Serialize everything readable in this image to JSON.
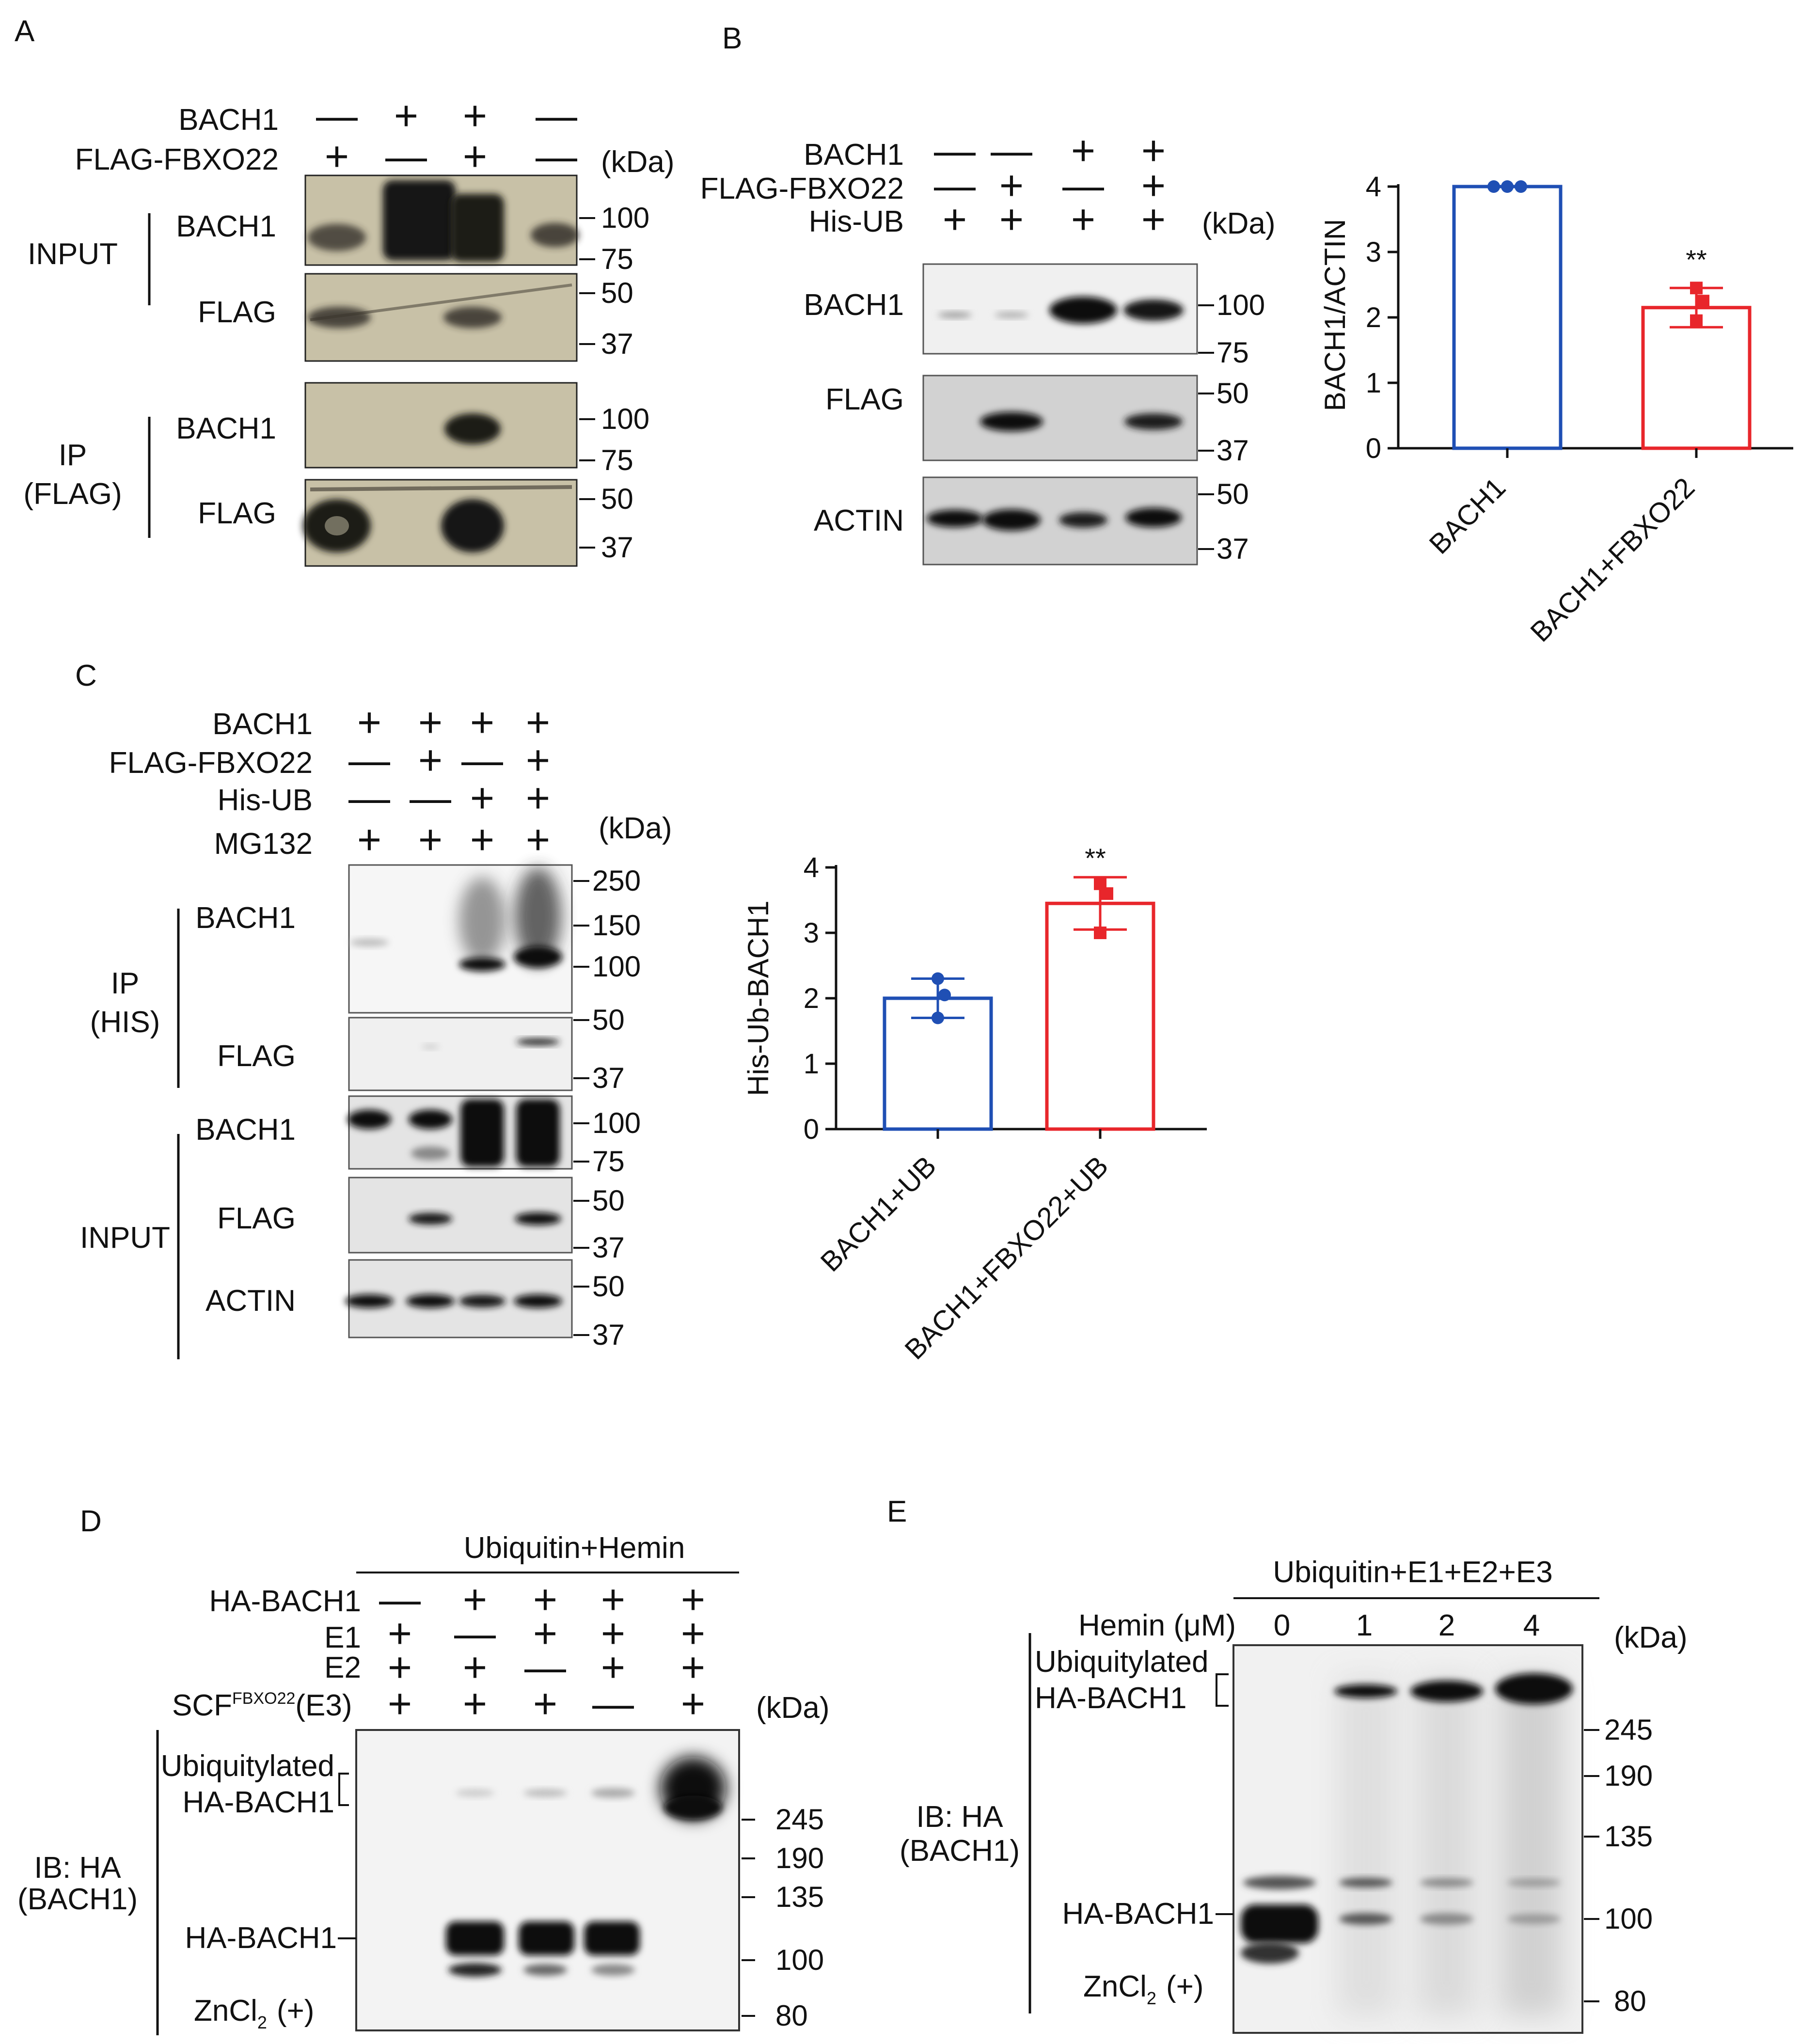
{
  "panels": {
    "A": {
      "letter": "A",
      "conditions": [
        {
          "label": "BACH1",
          "marks": [
            "—",
            "+",
            "+",
            "—"
          ]
        },
        {
          "label": "FLAG-FBXO22",
          "marks": [
            "+",
            "—",
            "+",
            "—"
          ]
        }
      ],
      "kda": "(kDa)",
      "group_labels": [
        "INPUT",
        "IP",
        "(FLAG)"
      ],
      "blot_labels": [
        "BACH1",
        "FLAG",
        "BACH1",
        "FLAG"
      ],
      "markers": [
        "100",
        "75",
        "50",
        "37",
        "100",
        "75",
        "50",
        "37"
      ]
    },
    "B": {
      "letter": "B",
      "conditions": [
        {
          "label": "BACH1",
          "marks": [
            "—",
            "—",
            "+",
            "+"
          ]
        },
        {
          "label": "FLAG-FBXO22",
          "marks": [
            "—",
            "+",
            "—",
            "+"
          ]
        },
        {
          "label": "His-UB",
          "marks": [
            "+",
            "+",
            "+",
            "+"
          ]
        }
      ],
      "kda": "(kDa)",
      "blot_labels": [
        "BACH1",
        "FLAG",
        "ACTIN"
      ],
      "markers": [
        "100",
        "75",
        "50",
        "37",
        "50",
        "37"
      ]
    },
    "C": {
      "letter": "C",
      "conditions": [
        {
          "label": "BACH1",
          "marks": [
            "+",
            "+",
            "+",
            "+"
          ]
        },
        {
          "label": "FLAG-FBXO22",
          "marks": [
            "—",
            "+",
            "—",
            "+"
          ]
        },
        {
          "label": "His-UB",
          "marks": [
            "—",
            "—",
            "+",
            "+"
          ]
        },
        {
          "label": "MG132",
          "marks": [
            "+",
            "+",
            "+",
            "+"
          ]
        }
      ],
      "kda": "(kDa)",
      "group_labels": [
        "IP",
        "(HIS)",
        "INPUT"
      ],
      "blot_labels": [
        "BACH1",
        "FLAG",
        "BACH1",
        "FLAG",
        "ACTIN"
      ],
      "markers": [
        "250",
        "150",
        "100",
        "50",
        "37",
        "100",
        "75",
        "50",
        "37",
        "50",
        "37"
      ]
    },
    "D": {
      "letter": "D",
      "header": "Ubiquitin+Hemin",
      "conditions": [
        {
          "label": "HA-BACH1",
          "marks": [
            "—",
            "+",
            "+",
            "+",
            "+"
          ]
        },
        {
          "label": "E1",
          "marks": [
            "+",
            "—",
            "+",
            "+",
            "+"
          ]
        },
        {
          "label": "E2",
          "marks": [
            "+",
            "+",
            "—",
            "+",
            "+"
          ]
        },
        {
          "label": "SCF",
          "sup": "FBXO22",
          "suffix": "(E3)",
          "marks": [
            "+",
            "+",
            "+",
            "—",
            "+"
          ]
        }
      ],
      "kda": "(kDa)",
      "side_labels": [
        "Ubiquitylated",
        "HA-BACH1",
        "IB: HA",
        "(BACH1)",
        "HA-BACH1",
        "ZnCl",
        "2",
        "(+)"
      ],
      "markers": [
        "245",
        "190",
        "135",
        "100",
        "80"
      ]
    },
    "E": {
      "letter": "E",
      "header": "Ubiquitin+E1+E2+E3",
      "hemin_label": "Hemin (μM)",
      "hemin_values": [
        "0",
        "1",
        "2",
        "4"
      ],
      "kda": "(kDa)",
      "side_labels": [
        "Ubiquitylated",
        "HA-BACH1",
        "IB: HA",
        "(BACH1)",
        "HA-BACH1",
        "ZnCl",
        "2",
        "(+)"
      ],
      "markers": [
        "245",
        "190",
        "135",
        "100",
        "80"
      ]
    }
  },
  "chart_data": [
    {
      "type": "bar",
      "panel": "B",
      "categories": [
        "BACH1",
        "BACH1+FBXO22"
      ],
      "values": [
        4.0,
        2.15
      ],
      "error": [
        0.0,
        0.3
      ],
      "points": [
        [
          4.0,
          4.0,
          4.0
        ],
        [
          2.45,
          2.25,
          1.95
        ]
      ],
      "colors": [
        "#1f4fb4",
        "#e8262b"
      ],
      "ylabel": "BACH1/ACTIN",
      "ylim": [
        0,
        4
      ],
      "yticks": [
        "0",
        "1",
        "2",
        "3",
        "4"
      ],
      "annotation": "**"
    },
    {
      "type": "bar",
      "panel": "C",
      "categories": [
        "BACH1+UB",
        "BACH1+FBXO22+UB"
      ],
      "values": [
        2.0,
        3.45
      ],
      "error": [
        0.3,
        0.4
      ],
      "points": [
        [
          2.3,
          2.05,
          1.7
        ],
        [
          3.75,
          3.6,
          3.0
        ]
      ],
      "colors": [
        "#1f4fb4",
        "#e8262b"
      ],
      "ylabel": "His-Ub-BACH1",
      "ylim": [
        0,
        4
      ],
      "yticks": [
        "0",
        "1",
        "2",
        "3",
        "4"
      ],
      "annotation": "**"
    }
  ]
}
